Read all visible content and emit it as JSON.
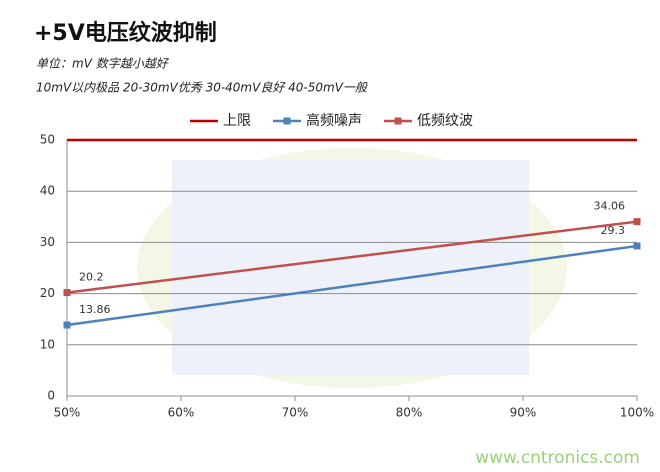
{
  "chart_data": {
    "type": "line",
    "title": "+5V电压纹波抑制",
    "subtitle": [
      "单位：mV  数字越小越好",
      "10mV以内极品  20-30mV优秀  30-40mV良好  40-50mV一般"
    ],
    "watermark": "www.cntronics.com",
    "x": [
      50,
      100
    ],
    "xlim": [
      50,
      100
    ],
    "xticks": [
      {
        "value": 50,
        "label": "50%"
      },
      {
        "value": 60,
        "label": "60%"
      },
      {
        "value": 70,
        "label": "70%"
      },
      {
        "value": 80,
        "label": "80%"
      },
      {
        "value": 90,
        "label": "90%"
      },
      {
        "value": 100,
        "label": "100%"
      }
    ],
    "ylim": [
      0,
      50
    ],
    "yticks": [
      0,
      10,
      20,
      30,
      40,
      50
    ],
    "grid": true,
    "legend": "top",
    "series": [
      {
        "name": "上限",
        "color": "#c00000",
        "values": [
          50,
          50
        ],
        "markers": false,
        "data_labels": false
      },
      {
        "name": "高频噪声",
        "color": "#4f81bd",
        "values": [
          13.86,
          29.3
        ],
        "markers": true,
        "data_labels": true
      },
      {
        "name": "低频纹波",
        "color": "#c0504d",
        "values": [
          20.2,
          34.06
        ],
        "markers": true,
        "data_labels": true
      }
    ]
  }
}
